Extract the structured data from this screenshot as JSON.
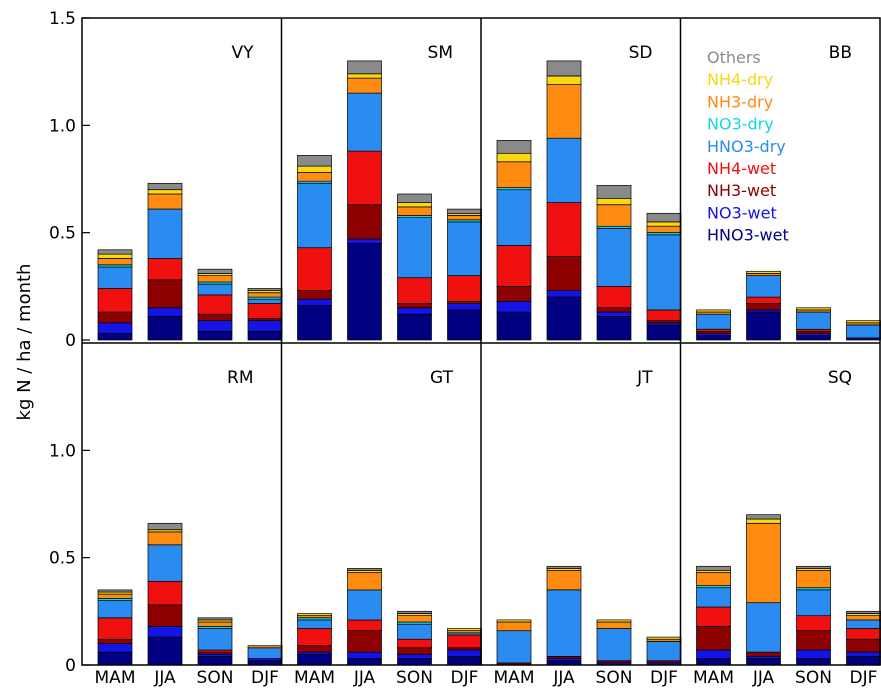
{
  "chart_data": {
    "type": "bar",
    "stacked": true,
    "ylabel": "kg N / ha / month",
    "ylim": [
      0,
      1.5
    ],
    "yticks": [
      0,
      0.5,
      1.0,
      1.5
    ],
    "ytick_labels": [
      "0",
      "0.5",
      "1.0",
      "1.5"
    ],
    "categories": [
      "MAM",
      "JJA",
      "SON",
      "DJF"
    ],
    "legend_position": "top-right",
    "components": [
      {
        "name": "HNO3-wet",
        "color": "#000080"
      },
      {
        "name": "NO3-wet",
        "color": "#1414e6"
      },
      {
        "name": "NH3-wet",
        "color": "#8c0000"
      },
      {
        "name": "NH4-wet",
        "color": "#f01010"
      },
      {
        "name": "HNO3-dry",
        "color": "#2a8cf0"
      },
      {
        "name": "NO3-dry",
        "color": "#10d8e8"
      },
      {
        "name": "NH3-dry",
        "color": "#ff8c10"
      },
      {
        "name": "NH4-dry",
        "color": "#f8d810"
      },
      {
        "name": "Others",
        "color": "#8a8a8a"
      }
    ],
    "legend_order": [
      "Others",
      "NH4-dry",
      "NH3-dry",
      "NO3-dry",
      "HNO3-dry",
      "NH4-wet",
      "NH3-wet",
      "NO3-wet",
      "HNO3-wet"
    ],
    "panels": [
      {
        "label": "VY",
        "values": [
          [
            0.03,
            0.05,
            0.05,
            0.11,
            0.1,
            0.01,
            0.03,
            0.02,
            0.02
          ],
          [
            0.11,
            0.04,
            0.13,
            0.1,
            0.23,
            0.0,
            0.07,
            0.02,
            0.03
          ],
          [
            0.04,
            0.05,
            0.03,
            0.09,
            0.05,
            0.01,
            0.03,
            0.01,
            0.02
          ],
          [
            0.04,
            0.05,
            0.01,
            0.07,
            0.02,
            0.01,
            0.02,
            0.01,
            0.01
          ]
        ]
      },
      {
        "label": "SM",
        "values": [
          [
            0.16,
            0.03,
            0.04,
            0.2,
            0.3,
            0.01,
            0.04,
            0.03,
            0.05
          ],
          [
            0.45,
            0.02,
            0.16,
            0.25,
            0.27,
            0.0,
            0.07,
            0.02,
            0.06
          ],
          [
            0.12,
            0.03,
            0.02,
            0.12,
            0.28,
            0.01,
            0.04,
            0.02,
            0.04
          ],
          [
            0.14,
            0.03,
            0.01,
            0.12,
            0.25,
            0.01,
            0.02,
            0.01,
            0.02
          ]
        ]
      },
      {
        "label": "SD",
        "values": [
          [
            0.13,
            0.05,
            0.07,
            0.19,
            0.26,
            0.01,
            0.12,
            0.04,
            0.06
          ],
          [
            0.2,
            0.03,
            0.16,
            0.25,
            0.3,
            0.0,
            0.25,
            0.04,
            0.07
          ],
          [
            0.11,
            0.02,
            0.02,
            0.1,
            0.27,
            0.01,
            0.1,
            0.03,
            0.06
          ],
          [
            0.07,
            0.01,
            0.01,
            0.05,
            0.35,
            0.01,
            0.03,
            0.02,
            0.04
          ]
        ]
      },
      {
        "label": "BB",
        "values": [
          [
            0.02,
            0.01,
            0.01,
            0.01,
            0.07,
            0.0,
            0.01,
            0.01,
            0.0
          ],
          [
            0.13,
            0.01,
            0.03,
            0.03,
            0.1,
            0.0,
            0.01,
            0.01,
            0.0
          ],
          [
            0.02,
            0.01,
            0.01,
            0.01,
            0.08,
            0.0,
            0.01,
            0.01,
            0.0
          ],
          [
            0.01,
            0.0,
            0.0,
            0.0,
            0.06,
            0.0,
            0.01,
            0.01,
            0.0
          ]
        ]
      },
      {
        "label": "RM",
        "values": [
          [
            0.06,
            0.04,
            0.02,
            0.1,
            0.08,
            0.01,
            0.02,
            0.01,
            0.01
          ],
          [
            0.13,
            0.05,
            0.1,
            0.11,
            0.17,
            0.0,
            0.06,
            0.01,
            0.03
          ],
          [
            0.04,
            0.01,
            0.01,
            0.01,
            0.1,
            0.01,
            0.02,
            0.01,
            0.01
          ],
          [
            0.02,
            0.01,
            0.0,
            0.0,
            0.05,
            0.0,
            0.01,
            0.0,
            0.0
          ]
        ]
      },
      {
        "label": "GT",
        "values": [
          [
            0.05,
            0.01,
            0.03,
            0.08,
            0.04,
            0.01,
            0.01,
            0.01,
            0.0
          ],
          [
            0.03,
            0.03,
            0.1,
            0.05,
            0.14,
            0.0,
            0.08,
            0.01,
            0.01
          ],
          [
            0.03,
            0.02,
            0.03,
            0.04,
            0.07,
            0.01,
            0.03,
            0.01,
            0.01
          ],
          [
            0.04,
            0.03,
            0.01,
            0.06,
            0.01,
            0.0,
            0.01,
            0.01,
            0.0
          ]
        ]
      },
      {
        "label": "JT",
        "values": [
          [
            0.0,
            0.0,
            0.01,
            0.0,
            0.15,
            0.0,
            0.04,
            0.01,
            0.0
          ],
          [
            0.02,
            0.01,
            0.01,
            0.0,
            0.31,
            0.0,
            0.09,
            0.01,
            0.01
          ],
          [
            0.0,
            0.01,
            0.01,
            0.0,
            0.15,
            0.0,
            0.03,
            0.01,
            0.0
          ],
          [
            0.0,
            0.01,
            0.01,
            0.0,
            0.09,
            0.0,
            0.01,
            0.01,
            0.0
          ]
        ]
      },
      {
        "label": "SQ",
        "values": [
          [
            0.03,
            0.04,
            0.11,
            0.09,
            0.09,
            0.01,
            0.06,
            0.01,
            0.02
          ],
          [
            0.03,
            0.01,
            0.02,
            0.0,
            0.23,
            0.0,
            0.37,
            0.02,
            0.02
          ],
          [
            0.03,
            0.04,
            0.09,
            0.07,
            0.12,
            0.01,
            0.08,
            0.01,
            0.01
          ],
          [
            0.04,
            0.02,
            0.06,
            0.05,
            0.04,
            0.0,
            0.02,
            0.01,
            0.01
          ]
        ]
      }
    ]
  }
}
